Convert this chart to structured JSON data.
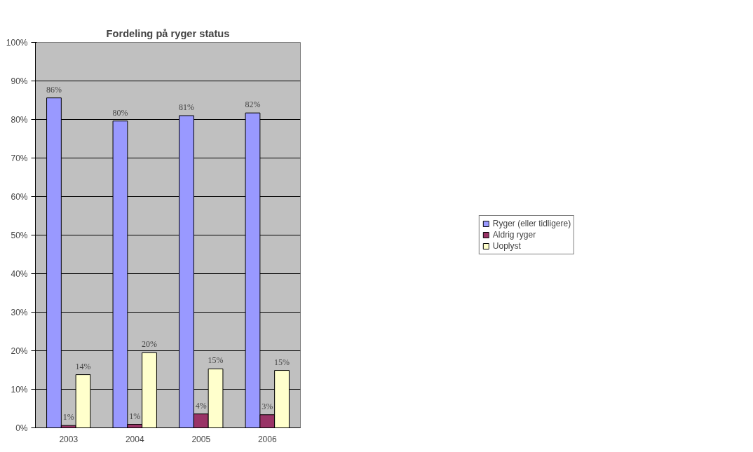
{
  "chart_data": {
    "type": "bar",
    "title": "Fordeling på ryger status",
    "categories": [
      "2003",
      "2004",
      "2005",
      "2006"
    ],
    "series": [
      {
        "name": "Ryger (eller tidligere)",
        "color": "#9999ff",
        "values": [
          85.6,
          79.6,
          81.0,
          81.7
        ],
        "value_labels": [
          "86%",
          "80%",
          "81%",
          "82%"
        ]
      },
      {
        "name": "Aldrig ryger",
        "color": "#993366",
        "values": [
          0.6,
          0.9,
          3.6,
          3.4
        ],
        "value_labels": [
          "1%",
          "1%",
          "4%",
          "3%"
        ]
      },
      {
        "name": "Uoplyst",
        "color": "#ffffcc",
        "values": [
          13.8,
          19.5,
          15.3,
          14.9
        ],
        "value_labels": [
          "14%",
          "20%",
          "15%",
          "15%"
        ]
      }
    ],
    "ylim": [
      0,
      100
    ],
    "yticks": [
      {
        "value": 0,
        "label": "0%"
      },
      {
        "value": 10,
        "label": "10%"
      },
      {
        "value": 20,
        "label": "20%"
      },
      {
        "value": 30,
        "label": "30%"
      },
      {
        "value": 40,
        "label": "40%"
      },
      {
        "value": 50,
        "label": "50%"
      },
      {
        "value": 60,
        "label": "60%"
      },
      {
        "value": 70,
        "label": "70%"
      },
      {
        "value": 80,
        "label": "80%"
      },
      {
        "value": 90,
        "label": "90%"
      },
      {
        "value": 100,
        "label": "100%"
      }
    ],
    "grid": "y",
    "legend": "right"
  }
}
